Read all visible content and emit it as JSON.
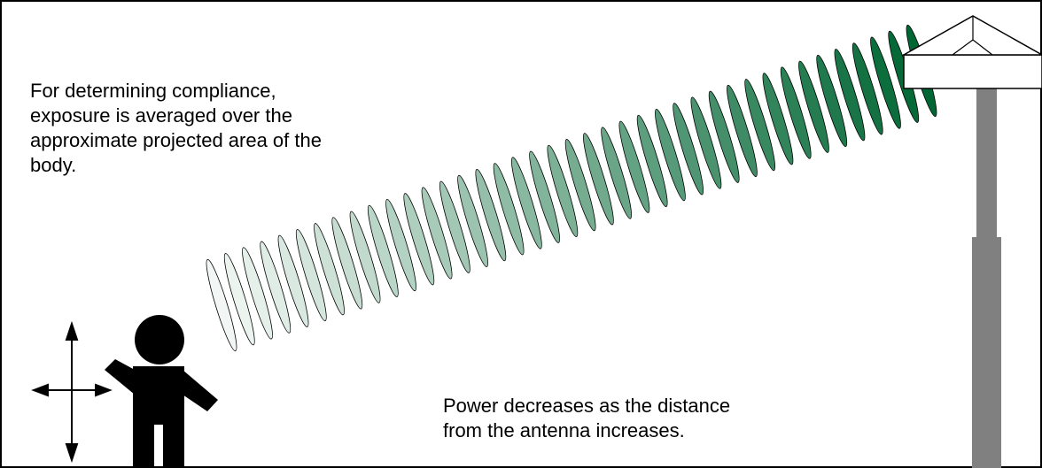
{
  "compliance_note": {
    "lines": [
      "For determining compliance,",
      "exposure is averaged over the",
      "approximate projected area of the",
      "body."
    ]
  },
  "power_note": {
    "lines": [
      "Power decreases as the distance",
      "from the antenna increases."
    ]
  }
}
